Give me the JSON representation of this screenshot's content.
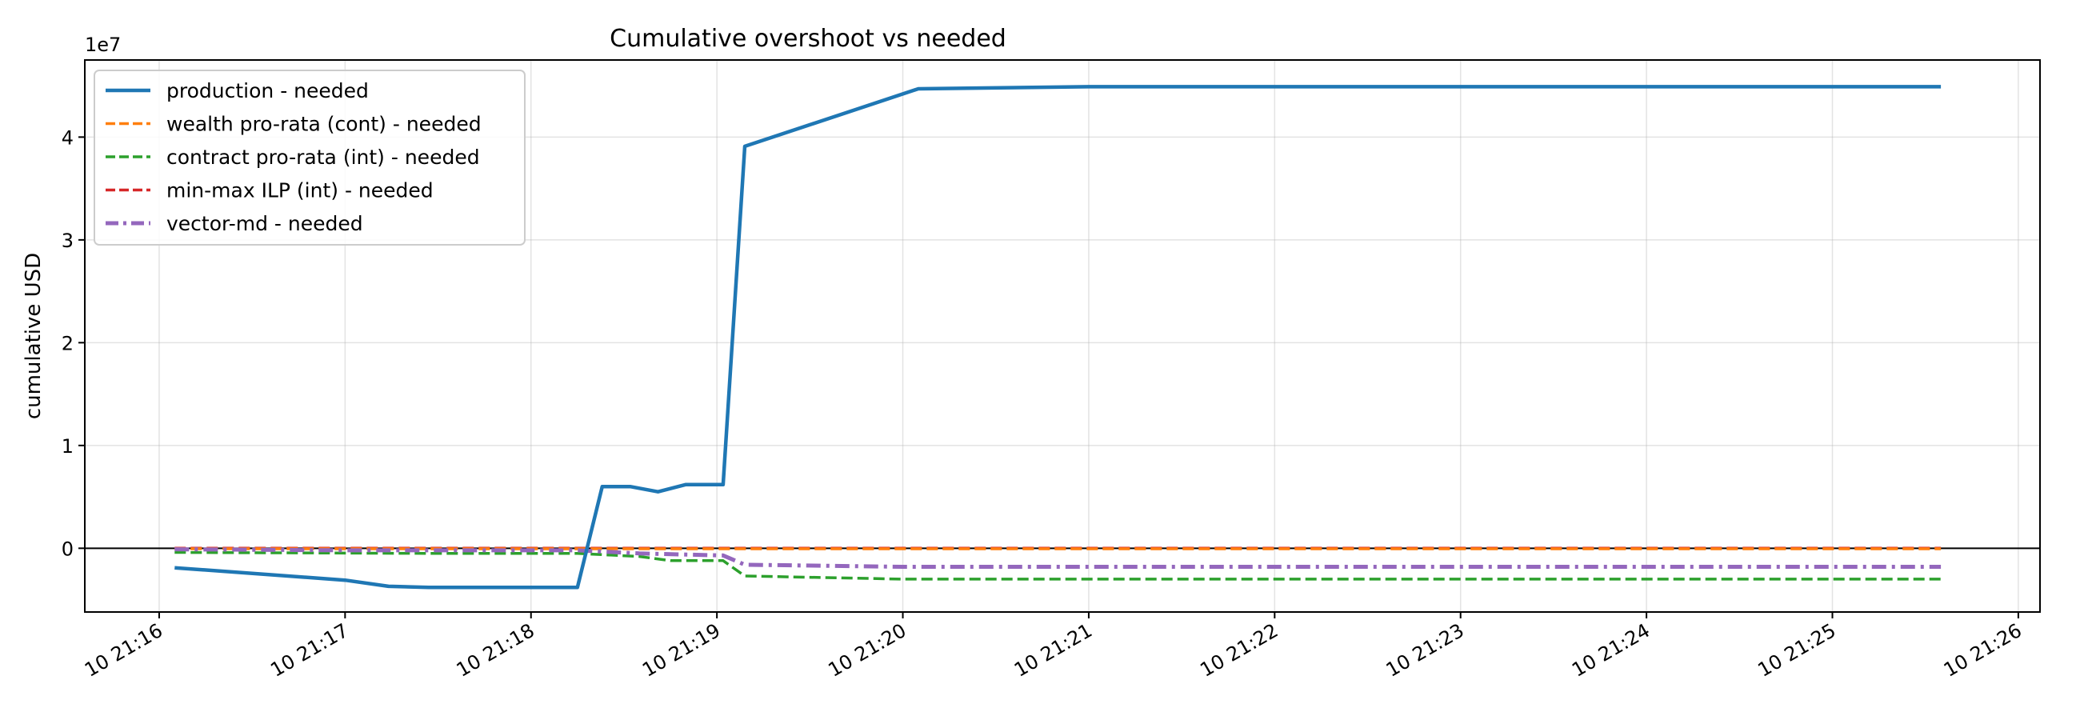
{
  "chart_data": {
    "type": "line",
    "title": "Cumulative overshoot vs needed",
    "xlabel": "",
    "ylabel": "cumulative USD",
    "y_multiplier_label": "1e7",
    "x_ticks": [
      "10 21:16",
      "10 21:17",
      "10 21:18",
      "10 21:19",
      "10 21:20",
      "10 21:21",
      "10 21:22",
      "10 21:23",
      "10 21:24",
      "10 21:25",
      "10 21:26"
    ],
    "y_ticks": [
      "0",
      "1",
      "2",
      "3",
      "4"
    ],
    "xlim": [
      "21:15:36",
      "21:26:07"
    ],
    "ylim": [
      -6200000,
      47500000
    ],
    "grid": true,
    "zero_line": true,
    "legend_position": "upper-left",
    "series": [
      {
        "name": "production - needed",
        "color": "#1f77b4",
        "style": "solid",
        "points": [
          {
            "x": "21:16:05",
            "y": -1900000
          },
          {
            "x": "21:17:00",
            "y": -3100000
          },
          {
            "x": "21:17:14",
            "y": -3700000
          },
          {
            "x": "21:17:27",
            "y": -3800000
          },
          {
            "x": "21:18:15",
            "y": -3800000
          },
          {
            "x": "21:18:23",
            "y": 6000000
          },
          {
            "x": "21:18:32",
            "y": 6000000
          },
          {
            "x": "21:18:41",
            "y": 5500000
          },
          {
            "x": "21:18:50",
            "y": 6200000
          },
          {
            "x": "21:19:02",
            "y": 6200000
          },
          {
            "x": "21:19:09",
            "y": 39100000
          },
          {
            "x": "21:20:05",
            "y": 44700000
          },
          {
            "x": "21:21:00",
            "y": 44900000
          },
          {
            "x": "21:25:35",
            "y": 44900000
          }
        ]
      },
      {
        "name": "wealth pro-rata (cont) - needed",
        "color": "#ff7f0e",
        "style": "dashed",
        "points": [
          {
            "x": "21:16:05",
            "y": -50000
          },
          {
            "x": "21:25:35",
            "y": -50000
          }
        ]
      },
      {
        "name": "contract pro-rata (int) - needed",
        "color": "#2ca02c",
        "style": "dashed",
        "points": [
          {
            "x": "21:16:05",
            "y": -400000
          },
          {
            "x": "21:17:30",
            "y": -500000
          },
          {
            "x": "21:18:15",
            "y": -500000
          },
          {
            "x": "21:18:35",
            "y": -800000
          },
          {
            "x": "21:18:45",
            "y": -1200000
          },
          {
            "x": "21:19:02",
            "y": -1200000
          },
          {
            "x": "21:19:09",
            "y": -2700000
          },
          {
            "x": "21:20:00",
            "y": -3000000
          },
          {
            "x": "21:25:35",
            "y": -3000000
          }
        ]
      },
      {
        "name": "min-max ILP (int) - needed",
        "color": "#d62728",
        "style": "dashed",
        "points": [
          {
            "x": "21:16:05",
            "y": 0
          },
          {
            "x": "21:25:35",
            "y": 0
          }
        ]
      },
      {
        "name": "vector-md - needed",
        "color": "#9467bd",
        "style": "dashdot",
        "points": [
          {
            "x": "21:16:05",
            "y": -100000
          },
          {
            "x": "21:17:00",
            "y": -200000
          },
          {
            "x": "21:18:15",
            "y": -200000
          },
          {
            "x": "21:18:35",
            "y": -500000
          },
          {
            "x": "21:19:02",
            "y": -700000
          },
          {
            "x": "21:19:09",
            "y": -1600000
          },
          {
            "x": "21:20:00",
            "y": -1800000
          },
          {
            "x": "21:25:35",
            "y": -1800000
          }
        ]
      }
    ]
  }
}
